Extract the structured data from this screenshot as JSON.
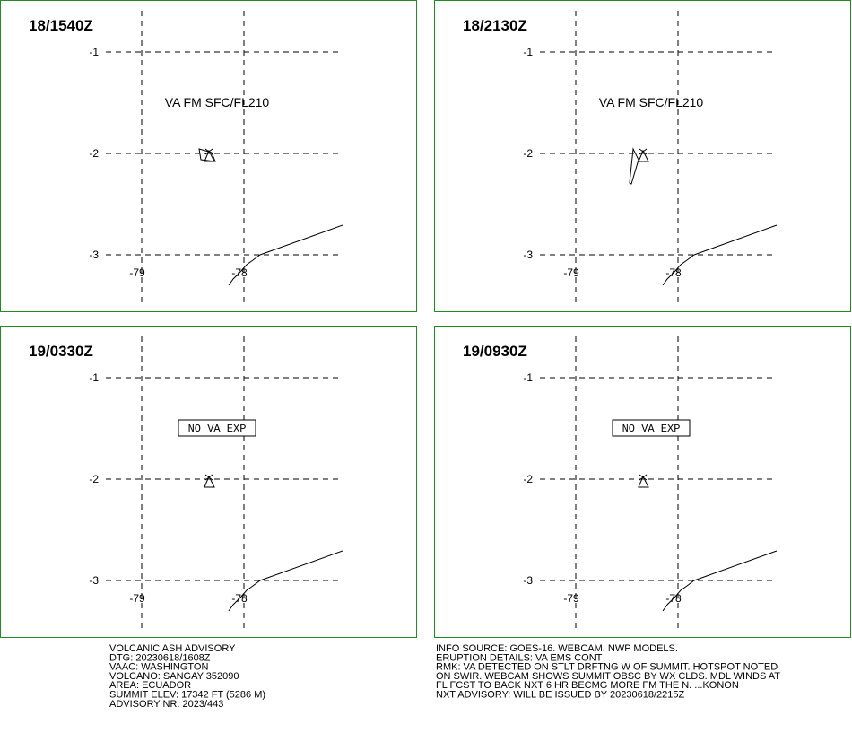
{
  "panels": [
    {
      "time": "18/1540Z",
      "annotation": "VA FM SFC/FL210",
      "lat_labels": [
        "-1",
        "-2",
        "-3"
      ],
      "lon_labels": [
        "-79",
        "-78"
      ]
    },
    {
      "time": "18/2130Z",
      "annotation": "VA FM SFC/FL210",
      "lat_labels": [
        "-1",
        "-2",
        "-3"
      ],
      "lon_labels": [
        "-79",
        "-78"
      ]
    },
    {
      "time": "19/0330Z",
      "annotation": "NO VA EXP",
      "lat_labels": [
        "-1",
        "-2",
        "-3"
      ],
      "lon_labels": [
        "-79",
        "-78"
      ]
    },
    {
      "time": "19/0930Z",
      "annotation": "NO VA EXP",
      "lat_labels": [
        "-1",
        "-2",
        "-3"
      ],
      "lon_labels": [
        "-79",
        "-78"
      ]
    }
  ],
  "advisory_left": [
    "VOLCANIC ASH ADVISORY",
    "DTG: 20230618/1608Z",
    "VAAC: WASHINGTON",
    "VOLCANO: SANGAY 352090",
    "AREA: ECUADOR",
    "SUMMIT ELEV: 17342 FT (5286 M)",
    "ADVISORY NR: 2023/443"
  ],
  "advisory_right": [
    "INFO SOURCE: GOES-16. WEBCAM. NWP MODELS.",
    "ERUPTION DETAILS: VA EMS CONT",
    "RMK: VA DETECTED ON STLT DRFTNG W OF SUMMIT. HOTSPOT NOTED",
    "ON SWIR. WEBCAM SHOWS SUMMIT OBSC BY WX CLDS. MDL WINDS AT",
    "FL FCST TO BACK NXT 6 HR BECMG MORE FM THE N. ...KONON",
    "NXT ADVISORY: WILL BE ISSUED BY 20230618/2215Z"
  ]
}
